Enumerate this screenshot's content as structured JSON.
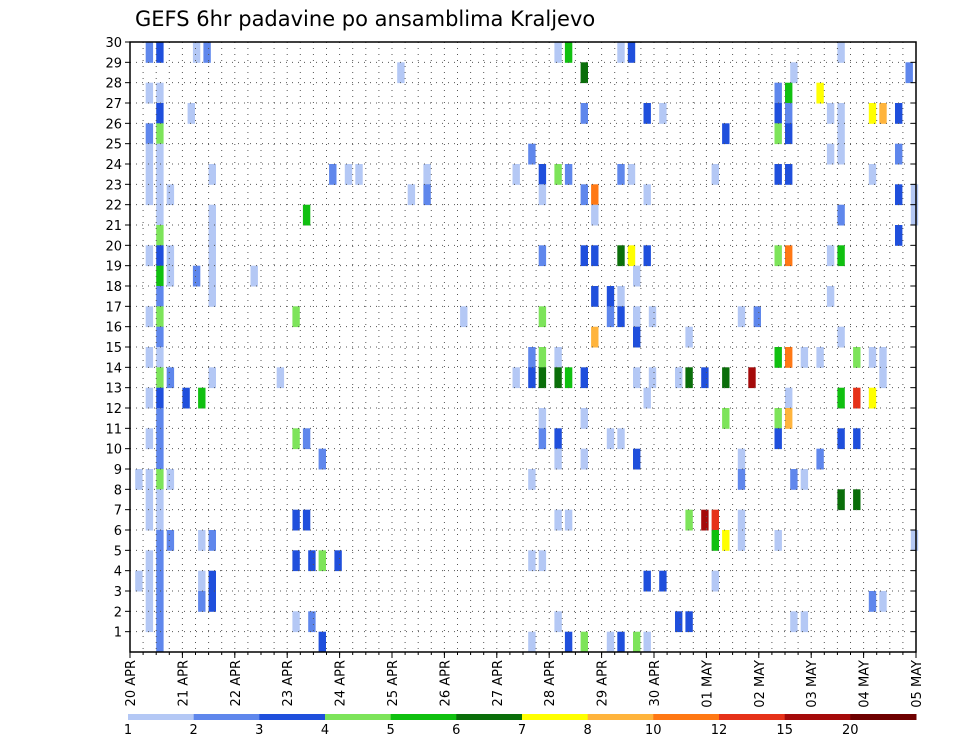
{
  "chart_data": {
    "type": "heatmap",
    "title": "GEFS 6hr padavine po ansamblima Kraljevo",
    "xlabel": "",
    "ylabel": "",
    "x_tick_labels": [
      "20 APR",
      "21 APR",
      "22 APR",
      "23 APR",
      "24 APR",
      "25 APR",
      "26 APR",
      "27 APR",
      "28 APR",
      "29 APR",
      "30 APR",
      "01 MAY",
      "02 MAY",
      "03 MAY",
      "04 MAY",
      "05 MAY"
    ],
    "y_range": [
      0,
      30
    ],
    "y_ticks": [
      1,
      2,
      3,
      4,
      5,
      6,
      7,
      8,
      9,
      10,
      11,
      12,
      13,
      14,
      15,
      16,
      17,
      18,
      19,
      20,
      21,
      22,
      23,
      24,
      25,
      26,
      27,
      28,
      29,
      30
    ],
    "grid": true,
    "colorbar": {
      "placement": "bottom",
      "labels": [
        "1",
        "2",
        "3",
        "4",
        "5",
        "6",
        "7",
        "8",
        "10",
        "12",
        "15",
        "20"
      ],
      "colors": [
        "#b4c8f5",
        "#5f87ec",
        "#1f4fdc",
        "#7de45a",
        "#10c010",
        "#0a6e0a",
        "#ffff00",
        "#ffb43c",
        "#ff7814",
        "#e63219",
        "#a50a0a",
        "#6e0000"
      ]
    },
    "cells": [
      [
        0.3,
        30,
        2
      ],
      [
        0.5,
        30,
        3
      ],
      [
        1.2,
        30,
        1
      ],
      [
        1.4,
        30,
        2
      ],
      [
        8.1,
        30,
        1
      ],
      [
        8.3,
        30,
        5
      ],
      [
        9.3,
        30,
        1
      ],
      [
        9.5,
        30,
        3
      ],
      [
        13.5,
        30,
        1
      ],
      [
        5.1,
        29,
        1
      ],
      [
        8.6,
        29,
        6
      ],
      [
        12.6,
        29,
        1
      ],
      [
        14.8,
        29,
        2
      ],
      [
        0.3,
        28,
        1
      ],
      [
        0.5,
        28,
        1
      ],
      [
        12.3,
        28,
        2
      ],
      [
        12.5,
        28,
        5
      ],
      [
        13.1,
        28,
        7
      ],
      [
        0.5,
        27,
        3
      ],
      [
        1.1,
        27,
        1
      ],
      [
        8.6,
        27,
        2
      ],
      [
        9.8,
        27,
        3
      ],
      [
        10.1,
        27,
        1
      ],
      [
        12.3,
        27,
        3
      ],
      [
        12.5,
        27,
        2
      ],
      [
        13.3,
        27,
        1
      ],
      [
        13.5,
        27,
        1
      ],
      [
        14.1,
        27,
        7
      ],
      [
        14.3,
        27,
        8
      ],
      [
        14.6,
        27,
        3
      ],
      [
        0.3,
        26,
        2
      ],
      [
        0.5,
        26,
        4
      ],
      [
        11.3,
        26,
        3
      ],
      [
        12.3,
        26,
        4
      ],
      [
        12.5,
        26,
        3
      ],
      [
        13.5,
        26,
        1
      ],
      [
        0.3,
        25,
        1
      ],
      [
        0.5,
        25,
        1
      ],
      [
        7.6,
        25,
        2
      ],
      [
        13.3,
        25,
        1
      ],
      [
        13.5,
        25,
        1
      ],
      [
        14.6,
        25,
        2
      ],
      [
        0.3,
        24,
        1
      ],
      [
        0.5,
        24,
        1
      ],
      [
        1.5,
        24,
        1
      ],
      [
        3.8,
        24,
        2
      ],
      [
        4.1,
        24,
        1
      ],
      [
        4.3,
        24,
        1
      ],
      [
        5.6,
        24,
        1
      ],
      [
        7.3,
        24,
        1
      ],
      [
        7.8,
        24,
        3
      ],
      [
        8.1,
        24,
        4
      ],
      [
        8.3,
        24,
        2
      ],
      [
        9.3,
        24,
        2
      ],
      [
        9.5,
        24,
        1
      ],
      [
        11.1,
        24,
        1
      ],
      [
        12.3,
        24,
        3
      ],
      [
        12.5,
        24,
        3
      ],
      [
        14.1,
        24,
        1
      ],
      [
        0.3,
        23,
        1
      ],
      [
        0.5,
        23,
        1
      ],
      [
        0.7,
        23,
        1
      ],
      [
        5.3,
        23,
        1
      ],
      [
        5.6,
        23,
        2
      ],
      [
        7.8,
        23,
        1
      ],
      [
        8.6,
        23,
        2
      ],
      [
        8.8,
        23,
        9
      ],
      [
        9.8,
        23,
        1
      ],
      [
        14.6,
        23,
        3
      ],
      [
        14.9,
        23,
        1
      ],
      [
        0.5,
        22,
        1
      ],
      [
        1.5,
        22,
        1
      ],
      [
        3.3,
        22,
        5
      ],
      [
        8.8,
        22,
        1
      ],
      [
        13.5,
        22,
        2
      ],
      [
        14.9,
        22,
        1
      ],
      [
        0.5,
        21,
        4
      ],
      [
        1.5,
        21,
        1
      ],
      [
        14.6,
        21,
        3
      ],
      [
        0.3,
        20,
        1
      ],
      [
        0.5,
        20,
        3
      ],
      [
        0.7,
        20,
        1
      ],
      [
        1.5,
        20,
        1
      ],
      [
        7.8,
        20,
        2
      ],
      [
        8.6,
        20,
        3
      ],
      [
        8.8,
        20,
        3
      ],
      [
        9.3,
        20,
        6
      ],
      [
        9.5,
        20,
        7
      ],
      [
        9.8,
        20,
        3
      ],
      [
        12.3,
        20,
        4
      ],
      [
        12.5,
        20,
        9
      ],
      [
        13.3,
        20,
        1
      ],
      [
        13.5,
        20,
        5
      ],
      [
        0.5,
        19,
        5
      ],
      [
        0.7,
        19,
        1
      ],
      [
        1.2,
        19,
        2
      ],
      [
        1.5,
        19,
        1
      ],
      [
        2.3,
        19,
        1
      ],
      [
        9.6,
        19,
        1
      ],
      [
        0.5,
        18,
        2
      ],
      [
        1.5,
        18,
        1
      ],
      [
        8.8,
        18,
        3
      ],
      [
        9.1,
        18,
        3
      ],
      [
        9.3,
        18,
        1
      ],
      [
        13.3,
        18,
        1
      ],
      [
        0.3,
        17,
        1
      ],
      [
        0.5,
        17,
        4
      ],
      [
        3.1,
        17,
        4
      ],
      [
        6.3,
        17,
        1
      ],
      [
        7.8,
        17,
        4
      ],
      [
        9.1,
        17,
        2
      ],
      [
        9.3,
        17,
        3
      ],
      [
        9.6,
        17,
        1
      ],
      [
        9.9,
        17,
        1
      ],
      [
        11.6,
        17,
        1
      ],
      [
        11.9,
        17,
        2
      ],
      [
        0.5,
        16,
        2
      ],
      [
        8.8,
        16,
        8
      ],
      [
        9.6,
        16,
        3
      ],
      [
        10.6,
        16,
        1
      ],
      [
        13.5,
        16,
        1
      ],
      [
        0.3,
        15,
        1
      ],
      [
        0.5,
        15,
        1
      ],
      [
        7.6,
        15,
        2
      ],
      [
        7.8,
        15,
        4
      ],
      [
        8.1,
        15,
        1
      ],
      [
        12.3,
        15,
        5
      ],
      [
        12.5,
        15,
        9
      ],
      [
        12.8,
        15,
        1
      ],
      [
        13.1,
        15,
        1
      ],
      [
        13.8,
        15,
        4
      ],
      [
        14.1,
        15,
        1
      ],
      [
        14.3,
        15,
        1
      ],
      [
        0.5,
        14,
        4
      ],
      [
        0.7,
        14,
        2
      ],
      [
        1.5,
        14,
        1
      ],
      [
        2.8,
        14,
        1
      ],
      [
        7.3,
        14,
        1
      ],
      [
        7.6,
        14,
        3
      ],
      [
        7.8,
        14,
        6
      ],
      [
        8.1,
        14,
        6
      ],
      [
        8.3,
        14,
        5
      ],
      [
        8.6,
        14,
        3
      ],
      [
        9.6,
        14,
        1
      ],
      [
        9.9,
        14,
        1
      ],
      [
        10.4,
        14,
        1
      ],
      [
        10.6,
        14,
        6
      ],
      [
        10.9,
        14,
        3
      ],
      [
        11.3,
        14,
        6
      ],
      [
        11.8,
        14,
        11
      ],
      [
        14.3,
        14,
        1
      ],
      [
        0.5,
        13,
        3
      ],
      [
        0.3,
        13,
        1
      ],
      [
        1.0,
        13,
        3
      ],
      [
        1.3,
        13,
        5
      ],
      [
        9.8,
        13,
        1
      ],
      [
        12.5,
        13,
        1
      ],
      [
        13.5,
        13,
        5
      ],
      [
        13.8,
        13,
        10
      ],
      [
        14.1,
        13,
        7
      ],
      [
        0.5,
        12,
        2
      ],
      [
        7.8,
        12,
        1
      ],
      [
        8.6,
        12,
        1
      ],
      [
        11.3,
        12,
        4
      ],
      [
        12.3,
        12,
        4
      ],
      [
        12.5,
        12,
        8
      ],
      [
        0.3,
        11,
        1
      ],
      [
        0.5,
        11,
        2
      ],
      [
        3.1,
        11,
        4
      ],
      [
        3.3,
        11,
        2
      ],
      [
        7.8,
        11,
        2
      ],
      [
        8.1,
        11,
        3
      ],
      [
        9.1,
        11,
        1
      ],
      [
        9.3,
        11,
        1
      ],
      [
        12.3,
        11,
        3
      ],
      [
        13.5,
        11,
        3
      ],
      [
        13.8,
        11,
        3
      ],
      [
        0.5,
        10,
        2
      ],
      [
        3.6,
        10,
        2
      ],
      [
        8.1,
        10,
        1
      ],
      [
        8.6,
        10,
        1
      ],
      [
        9.6,
        10,
        3
      ],
      [
        11.6,
        10,
        1
      ],
      [
        13.1,
        10,
        2
      ],
      [
        0.1,
        9,
        1
      ],
      [
        0.3,
        9,
        1
      ],
      [
        0.5,
        9,
        4
      ],
      [
        0.7,
        9,
        1
      ],
      [
        7.6,
        9,
        1
      ],
      [
        11.6,
        9,
        2
      ],
      [
        12.6,
        9,
        2
      ],
      [
        12.8,
        9,
        1
      ],
      [
        0.3,
        8,
        1
      ],
      [
        0.5,
        8,
        1
      ],
      [
        13.5,
        8,
        6
      ],
      [
        13.8,
        8,
        6
      ],
      [
        0.3,
        7,
        1
      ],
      [
        0.5,
        7,
        1
      ],
      [
        3.1,
        7,
        3
      ],
      [
        3.3,
        7,
        3
      ],
      [
        8.1,
        7,
        1
      ],
      [
        8.3,
        7,
        1
      ],
      [
        10.6,
        7,
        4
      ],
      [
        10.9,
        7,
        11
      ],
      [
        11.1,
        7,
        10
      ],
      [
        11.6,
        7,
        1
      ],
      [
        0.5,
        6,
        2
      ],
      [
        0.7,
        6,
        2
      ],
      [
        1.3,
        6,
        1
      ],
      [
        1.5,
        6,
        2
      ],
      [
        11.1,
        6,
        5
      ],
      [
        11.3,
        6,
        7
      ],
      [
        11.6,
        6,
        1
      ],
      [
        12.3,
        6,
        1
      ],
      [
        14.9,
        6,
        1
      ],
      [
        0.3,
        5,
        1
      ],
      [
        0.5,
        5,
        2
      ],
      [
        3.1,
        5,
        3
      ],
      [
        3.4,
        5,
        3
      ],
      [
        3.6,
        5,
        4
      ],
      [
        3.9,
        5,
        3
      ],
      [
        7.6,
        5,
        1
      ],
      [
        7.8,
        5,
        1
      ],
      [
        0.1,
        4,
        1
      ],
      [
        0.3,
        4,
        1
      ],
      [
        0.5,
        4,
        2
      ],
      [
        1.3,
        4,
        1
      ],
      [
        1.5,
        4,
        3
      ],
      [
        9.8,
        4,
        3
      ],
      [
        10.1,
        4,
        3
      ],
      [
        11.1,
        4,
        1
      ],
      [
        0.3,
        3,
        1
      ],
      [
        0.5,
        3,
        2
      ],
      [
        1.3,
        3,
        2
      ],
      [
        1.5,
        3,
        3
      ],
      [
        14.1,
        3,
        2
      ],
      [
        14.3,
        3,
        1
      ],
      [
        0.3,
        2,
        1
      ],
      [
        0.5,
        2,
        2
      ],
      [
        3.1,
        2,
        1
      ],
      [
        3.4,
        2,
        2
      ],
      [
        8.1,
        2,
        1
      ],
      [
        10.4,
        2,
        3
      ],
      [
        10.6,
        2,
        3
      ],
      [
        12.6,
        2,
        1
      ],
      [
        12.8,
        2,
        1
      ],
      [
        0.5,
        1,
        2
      ],
      [
        3.6,
        1,
        3
      ],
      [
        7.6,
        1,
        1
      ],
      [
        8.3,
        1,
        3
      ],
      [
        8.6,
        1,
        4
      ],
      [
        9.1,
        1,
        1
      ],
      [
        9.3,
        1,
        3
      ],
      [
        9.6,
        1,
        4
      ],
      [
        9.8,
        1,
        1
      ]
    ]
  }
}
